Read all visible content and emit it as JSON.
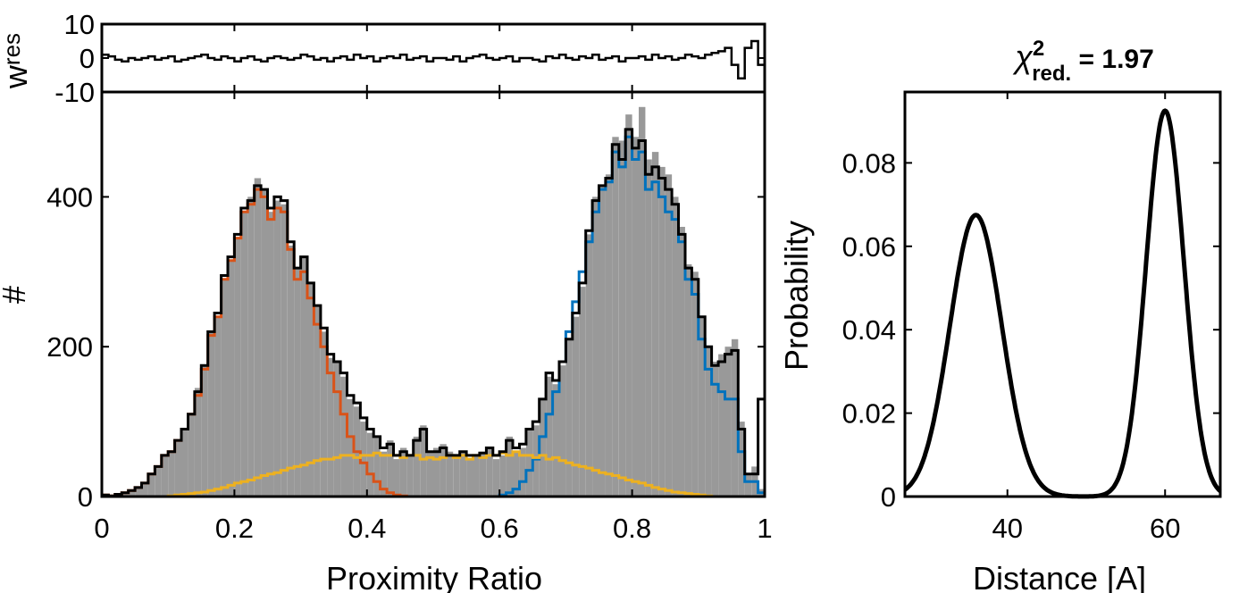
{
  "chart_data": [
    {
      "panel": "residuals",
      "type": "line",
      "ylabel_main": "w",
      "ylabel_sub": "res",
      "xlim": [
        0,
        1
      ],
      "ylim": [
        -10,
        10
      ],
      "yticks": [
        "10",
        "0",
        "-10"
      ],
      "series": [
        {
          "color": "#000000",
          "step": true,
          "x_start": 0,
          "bin_width": 0.01,
          "values": [
            1,
            0.5,
            -0.5,
            -1,
            0,
            -0.5,
            0,
            0.5,
            -0.5,
            0,
            0.5,
            -1,
            -0.5,
            0,
            0.5,
            1,
            0,
            -0.5,
            0.5,
            0,
            -1,
            0,
            0.5,
            -0.5,
            -1,
            0,
            0.5,
            0,
            -0.5,
            0,
            1,
            0.5,
            -0.5,
            0,
            -1,
            0,
            0.5,
            -0.5,
            1,
            0,
            0.5,
            -1,
            0,
            0.5,
            0,
            1,
            -0.5,
            0,
            0.5,
            -1,
            0,
            0,
            -0.5,
            0.5,
            -1,
            0,
            0.5,
            1,
            0,
            -0.5,
            0,
            0.5,
            -1,
            0,
            0,
            -0.5,
            -1,
            0.5,
            0,
            1,
            0,
            -0.5,
            0.5,
            0,
            1,
            -0.5,
            0,
            0.5,
            -1,
            0,
            0,
            0.5,
            -0.5,
            1,
            0,
            0.5,
            -0.5,
            0,
            1,
            0.5,
            0,
            1,
            1.5,
            2,
            3,
            -2,
            -6,
            3,
            5,
            -2
          ]
        }
      ]
    },
    {
      "panel": "histogram",
      "type": "bar",
      "xlabel": "Proximity Ratio",
      "ylabel": "#",
      "xlim": [
        0,
        1
      ],
      "ylim": [
        0,
        540
      ],
      "xticks": [
        0,
        0.2,
        0.4,
        0.6,
        0.8,
        1
      ],
      "xtick_labels": [
        "0",
        "0.2",
        "0.4",
        "0.6",
        "0.8",
        "1"
      ],
      "yticks": [
        0,
        200,
        400
      ],
      "ytick_labels": [
        "0",
        "200",
        "400"
      ],
      "x_start": 0,
      "bin_width": 0.01,
      "data_color": "#999999",
      "data_values": [
        2,
        1,
        3,
        5,
        8,
        12,
        18,
        30,
        40,
        55,
        60,
        75,
        90,
        110,
        145,
        175,
        220,
        240,
        290,
        315,
        345,
        380,
        400,
        425,
        410,
        380,
        395,
        390,
        335,
        305,
        320,
        285,
        255,
        220,
        185,
        180,
        160,
        130,
        120,
        100,
        85,
        80,
        60,
        75,
        50,
        65,
        55,
        80,
        95,
        60,
        65,
        70,
        60,
        55,
        60,
        50,
        55,
        60,
        65,
        50,
        55,
        80,
        60,
        65,
        90,
        95,
        130,
        160,
        150,
        175,
        210,
        240,
        280,
        350,
        400,
        415,
        430,
        480,
        475,
        510,
        480,
        520,
        450,
        460,
        440,
        430,
        400,
        360,
        310,
        300,
        240,
        200,
        180,
        190,
        200,
        210,
        100,
        30,
        40,
        10
      ],
      "series": [
        {
          "name": "",
          "color": "#D95319",
          "step": true,
          "values": [
            2,
            1,
            3,
            5,
            8,
            12,
            18,
            30,
            40,
            55,
            60,
            75,
            90,
            110,
            135,
            170,
            215,
            240,
            290,
            315,
            345,
            380,
            390,
            410,
            400,
            370,
            385,
            380,
            330,
            290,
            300,
            265,
            230,
            200,
            165,
            140,
            110,
            80,
            60,
            45,
            30,
            20,
            10,
            5,
            2,
            1,
            0,
            0,
            0,
            0,
            0,
            0,
            0,
            0,
            0,
            0,
            0,
            0,
            0,
            0,
            0,
            0,
            0,
            0,
            0,
            0,
            0,
            0,
            0,
            0,
            0,
            0,
            0,
            0,
            0,
            0,
            0,
            0,
            0,
            0,
            0,
            0,
            0,
            0,
            0,
            0,
            0,
            0,
            0,
            0,
            0,
            0,
            0,
            0,
            0,
            0,
            0,
            0,
            0,
            0
          ]
        },
        {
          "name": "",
          "color": "#0072BD",
          "step": true,
          "values": [
            0,
            0,
            0,
            0,
            0,
            0,
            0,
            0,
            0,
            0,
            0,
            0,
            0,
            0,
            0,
            0,
            0,
            0,
            0,
            0,
            0,
            0,
            0,
            0,
            0,
            0,
            0,
            0,
            0,
            0,
            0,
            0,
            0,
            0,
            0,
            0,
            0,
            0,
            0,
            0,
            0,
            0,
            0,
            0,
            0,
            0,
            0,
            0,
            0,
            0,
            0,
            0,
            0,
            0,
            0,
            0,
            0,
            0,
            0,
            0,
            2,
            5,
            10,
            20,
            35,
            50,
            80,
            110,
            140,
            180,
            220,
            260,
            300,
            340,
            380,
            410,
            420,
            460,
            440,
            480,
            450,
            460,
            410,
            420,
            400,
            380,
            370,
            340,
            290,
            270,
            210,
            170,
            150,
            140,
            130,
            130,
            60,
            20,
            20,
            5
          ]
        },
        {
          "name": "",
          "color": "#EDB120",
          "step": true,
          "values": [
            0,
            0,
            0,
            0,
            0,
            0,
            0,
            0,
            0,
            0,
            1,
            2,
            3,
            4,
            5,
            6,
            8,
            10,
            12,
            15,
            18,
            20,
            22,
            25,
            28,
            30,
            32,
            35,
            38,
            40,
            42,
            45,
            48,
            50,
            50,
            52,
            55,
            55,
            52,
            55,
            55,
            58,
            55,
            55,
            55,
            52,
            55,
            55,
            50,
            52,
            50,
            52,
            55,
            52,
            55,
            50,
            55,
            52,
            55,
            55,
            58,
            55,
            60,
            55,
            55,
            52,
            55,
            50,
            52,
            48,
            45,
            42,
            40,
            38,
            35,
            32,
            30,
            28,
            25,
            22,
            20,
            18,
            15,
            12,
            10,
            8,
            6,
            5,
            4,
            3,
            2,
            1,
            0,
            0,
            0,
            0,
            0,
            0,
            0,
            0
          ]
        },
        {
          "name": "",
          "color": "#000000",
          "step": true,
          "values": [
            2,
            1,
            3,
            5,
            8,
            12,
            18,
            30,
            40,
            55,
            60,
            75,
            90,
            110,
            140,
            175,
            220,
            245,
            295,
            320,
            350,
            385,
            395,
            415,
            410,
            385,
            400,
            395,
            340,
            305,
            320,
            285,
            255,
            225,
            190,
            180,
            165,
            135,
            125,
            105,
            90,
            80,
            65,
            70,
            55,
            60,
            55,
            75,
            90,
            60,
            60,
            65,
            55,
            55,
            60,
            55,
            55,
            58,
            65,
            55,
            60,
            75,
            65,
            70,
            90,
            100,
            130,
            165,
            155,
            180,
            210,
            245,
            285,
            355,
            395,
            415,
            425,
            470,
            450,
            490,
            465,
            475,
            430,
            440,
            425,
            410,
            390,
            350,
            305,
            290,
            240,
            200,
            175,
            180,
            190,
            195,
            90,
            30,
            30,
            130
          ]
        }
      ]
    },
    {
      "panel": "distance",
      "type": "line",
      "title_main": "χ",
      "title_sup": "2",
      "title_sub": "red.",
      "title_value": " = 1.97",
      "xlabel": "Distance [A]",
      "ylabel": "Probability",
      "xlim": [
        27,
        67
      ],
      "ylim": [
        0,
        0.097
      ],
      "xticks": [
        40,
        60
      ],
      "xtick_labels": [
        "40",
        "60"
      ],
      "yticks": [
        0,
        0.02,
        0.04,
        0.06,
        0.08
      ],
      "ytick_labels": [
        "0",
        "0.02",
        "0.04",
        "0.06",
        "0.08"
      ],
      "series": [
        {
          "name": "",
          "color": "#000000",
          "components": [
            {
              "center": 36,
              "sigma": 3.3,
              "amplitude": 0.0675
            },
            {
              "center": 60,
              "sigma": 2.4,
              "amplitude": 0.0925
            }
          ]
        }
      ],
      "baseline": {
        "color": "#888888",
        "style": "dashed",
        "y": 0
      }
    }
  ]
}
